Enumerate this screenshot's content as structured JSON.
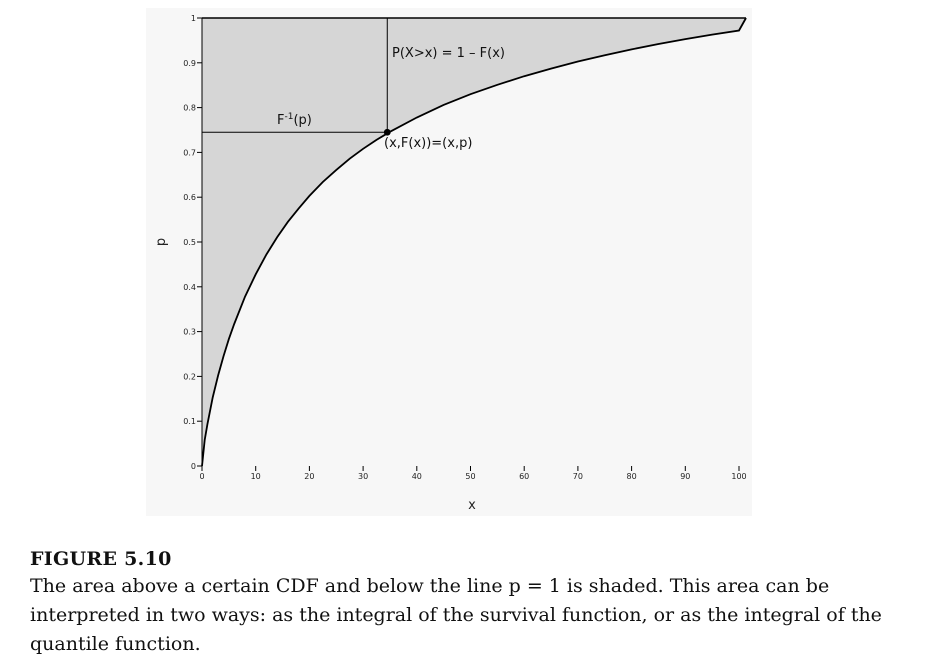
{
  "chart_data": {
    "type": "line",
    "xlabel": "x",
    "ylabel": "p",
    "xlim": [
      0,
      100
    ],
    "ylim": [
      0,
      1
    ],
    "x_ticks": [
      0,
      10,
      20,
      30,
      40,
      50,
      60,
      70,
      80,
      90,
      100
    ],
    "y_ticks": [
      0,
      0.1,
      0.2,
      0.3,
      0.4,
      0.5,
      0.6,
      0.7,
      0.8,
      0.9,
      1
    ],
    "y_tick_labels": [
      "0",
      "0.1",
      "0.2",
      "0.3",
      "0.4",
      "0.5",
      "0.6",
      "0.7",
      "0.8",
      "0.9",
      "1"
    ],
    "grid": false,
    "shaded_region": "area above the CDF and below p = 1",
    "series": [
      {
        "x": [
          0,
          0.5,
          1,
          2,
          3,
          4,
          5,
          6,
          8,
          10,
          12,
          14,
          16,
          18,
          20,
          22.5,
          25,
          27.5,
          30,
          32.5,
          35,
          40,
          45,
          50,
          55,
          60,
          65,
          70,
          75,
          80,
          85,
          90,
          95,
          100
        ],
        "y": [
          0,
          0.058,
          0.093,
          0.153,
          0.202,
          0.245,
          0.283,
          0.317,
          0.378,
          0.428,
          0.472,
          0.511,
          0.545,
          0.575,
          0.603,
          0.634,
          0.661,
          0.686,
          0.708,
          0.728,
          0.746,
          0.778,
          0.806,
          0.83,
          0.851,
          0.87,
          0.887,
          0.903,
          0.917,
          0.93,
          0.942,
          0.953,
          0.963,
          0.972
        ]
      }
    ],
    "highlight_point": {
      "x": 34.5,
      "y": 0.745
    },
    "annotations": {
      "survival": "P(X>x) = 1 – F(x)",
      "quantile_base": "F",
      "quantile_sup": "-1",
      "quantile_arg": "(p)",
      "point": "(x,F(x))=(x,p)"
    }
  },
  "caption": {
    "title": "FIGURE 5.10",
    "text": "The area above a certain CDF and below the line p = 1 is shaded. This area can be interpreted in two ways: as the integral of the survival function, or as the integral of the quantile function."
  }
}
